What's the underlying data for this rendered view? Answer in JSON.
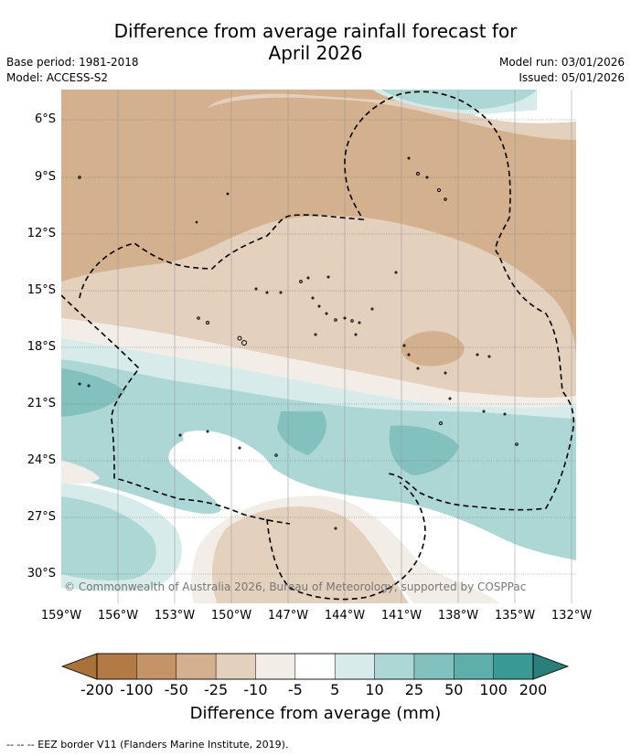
{
  "title": "Difference from average rainfall forecast for April 2026",
  "title_line1": "Difference from average rainfall forecast for",
  "title_line2": "April 2026",
  "meta": {
    "base_period": "Base period: 1981-2018",
    "model": "Model: ACCESS-S2",
    "model_run": "Model run: 03/01/2026",
    "issued": "Issued: 05/01/2026"
  },
  "copyright": "© Commonwealth of Australia 2026, Bureau of Meteorology, supported by COSPPac",
  "footnote": "--  --  -- EEZ border V11 (Flanders Marine Institute, 2019).",
  "colorbar": {
    "title": "Difference from average (mm)",
    "labels": [
      "-200",
      "-100",
      "-50",
      "-25",
      "-10",
      "-5",
      "5",
      "10",
      "25",
      "50",
      "100",
      "200"
    ],
    "colors": [
      "#a8723a",
      "#b47a45",
      "#c49468",
      "#d3b08e",
      "#e3d0bd",
      "#f2ede6",
      "#ffffff",
      "#d6ebea",
      "#acd7d5",
      "#83c1be",
      "#5eaeab",
      "#399994",
      "#2a7f7a"
    ]
  },
  "map": {
    "y_labels": [
      "6°S",
      "9°S",
      "12°S",
      "15°S",
      "18°S",
      "21°S",
      "24°S",
      "27°S",
      "30°S"
    ],
    "x_labels": [
      "159°W",
      "156°W",
      "153°W",
      "150°W",
      "147°W",
      "144°W",
      "141°W",
      "138°W",
      "135°W",
      "132°W"
    ]
  }
}
